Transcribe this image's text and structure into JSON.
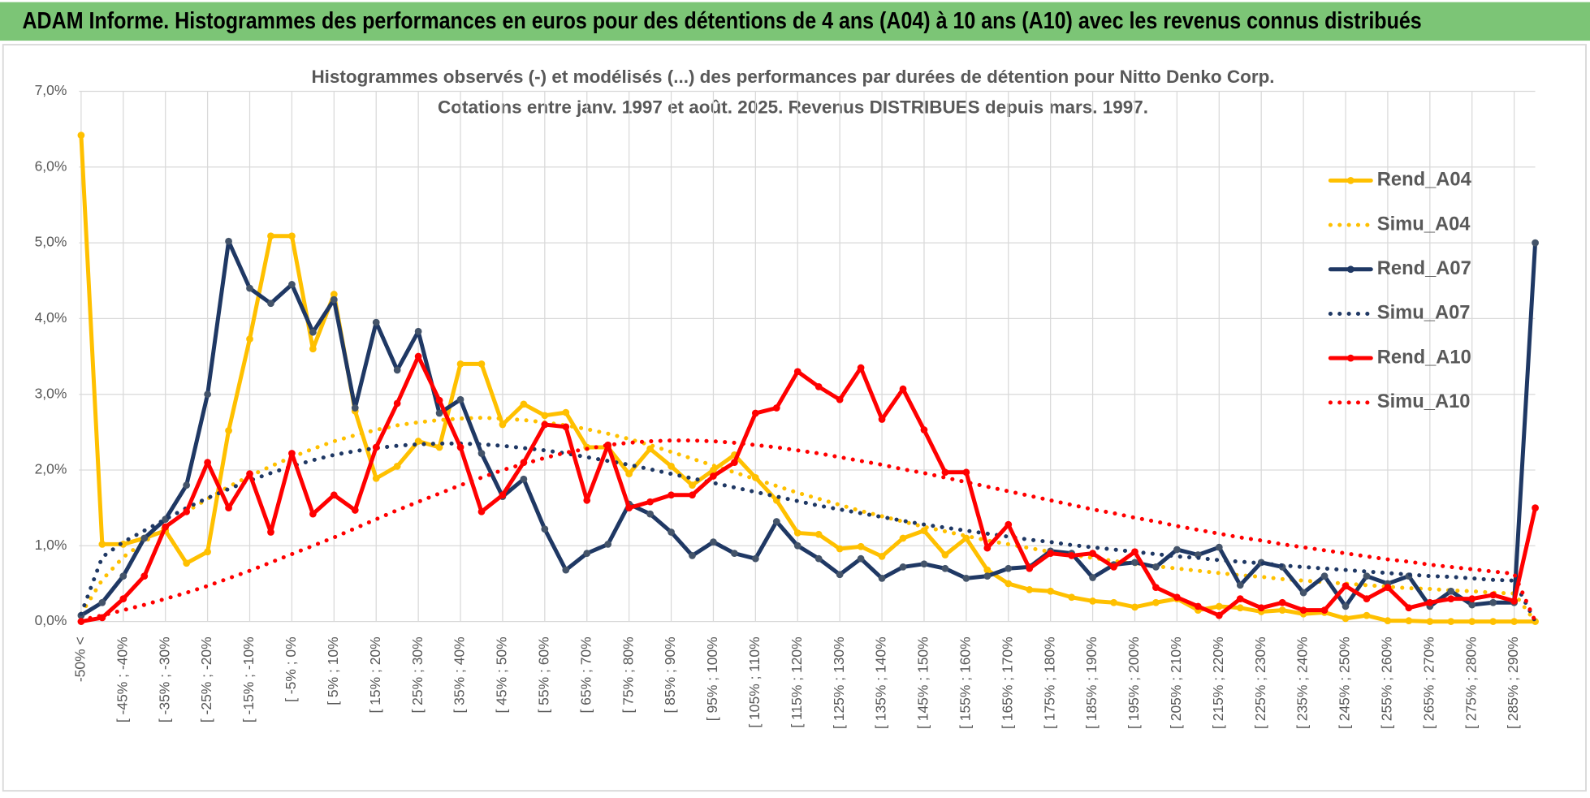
{
  "header": {
    "title": "ADAM Informe. Histogrammes des performances en euros pour des détentions de 4 ans (A04) à 10 ans (A10) avec les revenus connus distribués"
  },
  "chart_data": {
    "type": "line",
    "title": "Histogrammes observés (-) et modélisés (...) des performances par durées de détention pour Nitto Denko Corp.",
    "subtitle": "Cotations entre janv. 1997 et août. 2025. Revenus DISTRIBUES depuis mars. 1997.",
    "categories": [
      "-50% <",
      null,
      "[ -45% ; -40%",
      null,
      "[ -35% ; -30%",
      null,
      "[ -25% ; -20%",
      null,
      "[ -15% ; -10%",
      null,
      "[ -5% ; 0%",
      null,
      "[ 5% ; 10%",
      null,
      "[ 15% ; 20%",
      null,
      "[ 25% ; 30%",
      null,
      "[ 35% ; 40%",
      null,
      "[ 45% ; 50%",
      null,
      "[ 55% ; 60%",
      null,
      "[ 65% ; 70%",
      null,
      "[ 75% ; 80%",
      null,
      "[ 85% ; 90%",
      null,
      "[ 95% ; 100%",
      null,
      "[ 105% ; 110%",
      null,
      "[ 115% ; 120%",
      null,
      "[ 125% ; 130%",
      null,
      "[ 135% ; 140%",
      null,
      "[ 145% ; 150%",
      null,
      "[ 155% ; 160%",
      null,
      "[ 165% ; 170%",
      null,
      "[ 175% ; 180%",
      null,
      "[ 185% ; 190%",
      null,
      "[ 195% ; 200%",
      null,
      "[ 205% ; 210%",
      null,
      "[ 215% ; 220%",
      null,
      "[ 225% ; 230%",
      null,
      "[ 235% ; 240%",
      null,
      "[ 245% ; 250%",
      null,
      "[ 255% ; 260%",
      null,
      "[ 265% ; 270%",
      null,
      "[ 275% ; 280%",
      null,
      "[ 285% ; 290%",
      null
    ],
    "series": [
      {
        "name": "Rend_A04",
        "color": "#FFC000",
        "line_style": "solid",
        "values": [
          6.42,
          1.02,
          1.02,
          1.1,
          1.2,
          0.77,
          0.92,
          2.52,
          3.73,
          5.09,
          5.09,
          3.6,
          4.32,
          2.78,
          1.89,
          2.05,
          2.38,
          2.3,
          3.4,
          3.4,
          2.6,
          2.87,
          2.72,
          2.76,
          2.3,
          2.3,
          1.95,
          2.28,
          2.05,
          1.8,
          2.0,
          2.2,
          1.9,
          1.6,
          1.17,
          1.15,
          0.96,
          0.99,
          0.86,
          1.1,
          1.2,
          0.88,
          1.1,
          0.68,
          0.5,
          0.42,
          0.4,
          0.32,
          0.27,
          0.25,
          0.19,
          0.25,
          0.3,
          0.15,
          0.2,
          0.18,
          0.13,
          0.15,
          0.1,
          0.12,
          0.04,
          0.08,
          0.01,
          0.01,
          0,
          0,
          0,
          0,
          0,
          0
        ]
      },
      {
        "name": "Simu_A04",
        "color": "#FFC000",
        "line_style": "dotted",
        "values": [
          0.1,
          0.55,
          0.85,
          1.05,
          1.25,
          1.45,
          1.62,
          1.78,
          1.92,
          2.05,
          2.17,
          2.28,
          2.38,
          2.46,
          2.53,
          2.59,
          2.63,
          2.66,
          2.68,
          2.69,
          2.68,
          2.66,
          2.63,
          2.59,
          2.54,
          2.48,
          2.41,
          2.33,
          2.24,
          2.15,
          2.06,
          1.97,
          1.88,
          1.79,
          1.7,
          1.62,
          1.54,
          1.46,
          1.39,
          1.32,
          1.25,
          1.19,
          1.13,
          1.07,
          1.02,
          0.97,
          0.92,
          0.88,
          0.84,
          0.8,
          0.76,
          0.73,
          0.7,
          0.67,
          0.64,
          0.61,
          0.59,
          0.56,
          0.54,
          0.52,
          0.5,
          0.48,
          0.46,
          0.44,
          0.43,
          0.41,
          0.4,
          0.38,
          0.37,
          0
        ]
      },
      {
        "name": "Rend_A07",
        "color": "#1F3864",
        "line_style": "solid",
        "values": [
          0.08,
          0.25,
          0.6,
          1.1,
          1.35,
          1.8,
          3.0,
          5.02,
          4.4,
          4.2,
          4.45,
          3.82,
          4.25,
          2.82,
          3.95,
          3.32,
          3.83,
          2.75,
          2.93,
          2.22,
          1.65,
          1.88,
          1.22,
          0.68,
          0.9,
          1.02,
          1.55,
          1.42,
          1.18,
          0.87,
          1.05,
          0.9,
          0.83,
          1.32,
          1.0,
          0.83,
          0.62,
          0.83,
          0.57,
          0.72,
          0.76,
          0.7,
          0.57,
          0.6,
          0.7,
          0.72,
          0.93,
          0.9,
          0.58,
          0.75,
          0.78,
          0.72,
          0.95,
          0.88,
          0.98,
          0.48,
          0.78,
          0.72,
          0.38,
          0.6,
          0.2,
          0.6,
          0.5,
          0.6,
          0.2,
          0.4,
          0.22,
          0.25,
          0.25,
          5.0
        ]
      },
      {
        "name": "Simu_A07",
        "color": "#1F3864",
        "line_style": "dotted",
        "values": [
          0.1,
          0.85,
          1.05,
          1.2,
          1.35,
          1.5,
          1.63,
          1.75,
          1.86,
          1.96,
          2.05,
          2.13,
          2.2,
          2.25,
          2.29,
          2.32,
          2.34,
          2.35,
          2.35,
          2.34,
          2.32,
          2.29,
          2.26,
          2.22,
          2.17,
          2.12,
          2.07,
          2.01,
          1.95,
          1.89,
          1.83,
          1.77,
          1.71,
          1.65,
          1.59,
          1.53,
          1.48,
          1.43,
          1.38,
          1.33,
          1.28,
          1.24,
          1.2,
          1.16,
          1.12,
          1.08,
          1.05,
          1.01,
          0.98,
          0.95,
          0.92,
          0.89,
          0.86,
          0.84,
          0.81,
          0.79,
          0.77,
          0.74,
          0.72,
          0.7,
          0.68,
          0.66,
          0.64,
          0.62,
          0.6,
          0.59,
          0.57,
          0.55,
          0.54,
          0
        ]
      },
      {
        "name": "Rend_A10",
        "color": "#FF0000",
        "line_style": "solid",
        "values": [
          0.0,
          0.05,
          0.3,
          0.6,
          1.25,
          1.45,
          2.1,
          1.5,
          1.95,
          1.18,
          2.22,
          1.42,
          1.67,
          1.47,
          2.3,
          2.88,
          3.5,
          2.92,
          2.3,
          1.45,
          1.67,
          2.1,
          2.6,
          2.57,
          1.6,
          2.33,
          1.5,
          1.58,
          1.67,
          1.67,
          1.92,
          2.1,
          2.75,
          2.82,
          3.3,
          3.1,
          2.93,
          3.35,
          2.67,
          3.07,
          2.53,
          1.97,
          1.97,
          0.97,
          1.28,
          0.7,
          0.9,
          0.87,
          0.9,
          0.72,
          0.92,
          0.45,
          0.32,
          0.2,
          0.08,
          0.3,
          0.18,
          0.25,
          0.15,
          0.15,
          0.47,
          0.3,
          0.45,
          0.18,
          0.25,
          0.3,
          0.3,
          0.35,
          0.27,
          1.5
        ]
      },
      {
        "name": "Simu_A10",
        "color": "#FF0000",
        "line_style": "dotted",
        "values": [
          0.02,
          0.08,
          0.15,
          0.22,
          0.3,
          0.38,
          0.47,
          0.57,
          0.67,
          0.78,
          0.89,
          1.0,
          1.11,
          1.23,
          1.35,
          1.47,
          1.58,
          1.69,
          1.8,
          1.9,
          2.0,
          2.08,
          2.16,
          2.23,
          2.28,
          2.33,
          2.36,
          2.38,
          2.39,
          2.39,
          2.38,
          2.36,
          2.33,
          2.3,
          2.26,
          2.22,
          2.17,
          2.12,
          2.07,
          2.01,
          1.96,
          1.9,
          1.84,
          1.78,
          1.72,
          1.66,
          1.6,
          1.54,
          1.48,
          1.43,
          1.37,
          1.32,
          1.26,
          1.21,
          1.16,
          1.11,
          1.07,
          1.02,
          0.98,
          0.94,
          0.9,
          0.86,
          0.82,
          0.79,
          0.75,
          0.72,
          0.69,
          0.66,
          0.63,
          0
        ]
      }
    ],
    "ylim": [
      0,
      7
    ],
    "yticks": [
      {
        "value": 0,
        "label": "0,0%"
      },
      {
        "value": 1,
        "label": "1,0%"
      },
      {
        "value": 2,
        "label": "2,0%"
      },
      {
        "value": 3,
        "label": "3,0%"
      },
      {
        "value": 4,
        "label": "4,0%"
      },
      {
        "value": 5,
        "label": "5,0%"
      },
      {
        "value": 6,
        "label": "6,0%"
      },
      {
        "value": 7,
        "label": "7,0%"
      }
    ],
    "grid": true,
    "legend": "right"
  }
}
